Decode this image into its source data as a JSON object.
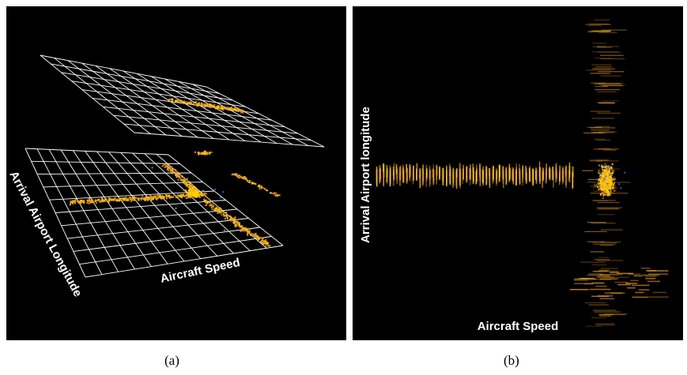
{
  "figure": {
    "panel_a": {
      "caption": "(a)",
      "xlabel": "Aircraft Speed",
      "ylabel": "Arrival Airport Longitude"
    },
    "panel_b": {
      "caption": "(b)",
      "xlabel": "Aircraft Speed",
      "ylabel": "Arrival Airport longitude"
    }
  },
  "colors": {
    "background": "#000000",
    "grid": "#ffffff",
    "density_main": "#f5a623",
    "density_hot": "#ffd200",
    "density_accent_green": "#4caf50",
    "density_accent_blue": "#3d5afe"
  }
}
